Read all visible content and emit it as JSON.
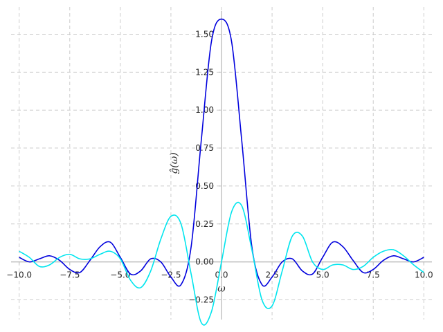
{
  "chart_data": {
    "type": "line",
    "title": "",
    "xlabel": "ω",
    "ylabel": "ĝ(ω)",
    "xlim": [
      -10.4,
      10.4
    ],
    "ylim": [
      -0.38,
      1.68
    ],
    "grid": true,
    "x_ticks": [
      -10.0,
      -7.5,
      -5.0,
      -2.5,
      0.0,
      2.5,
      5.0,
      7.5,
      10.0
    ],
    "x_tick_labels": [
      "−10.0",
      "−7.5",
      "−5.0",
      "−2.5",
      "0.0",
      "2.5",
      "5.0",
      "7.5",
      "10.0"
    ],
    "y_ticks": [
      -0.25,
      0.0,
      0.25,
      0.5,
      0.75,
      1.0,
      1.25,
      1.5
    ],
    "y_tick_labels": [
      "−0.25",
      "0.00",
      "0.25",
      "0.50",
      "0.75",
      "1.00",
      "1.25",
      "1.50"
    ],
    "series": [
      {
        "color": "#0000dd",
        "x": [
          -10.0,
          -9.5,
          -9.0,
          -8.5,
          -8.0,
          -7.5,
          -7.0,
          -6.5,
          -6.0,
          -5.5,
          -5.0,
          -4.5,
          -4.0,
          -3.5,
          -3.0,
          -2.5,
          -2.0,
          -1.5,
          -1.0,
          -0.5,
          0.0,
          0.5,
          1.0,
          1.5,
          2.0,
          2.5,
          3.0,
          3.5,
          4.0,
          4.5,
          5.0,
          5.5,
          6.0,
          6.5,
          7.0,
          7.5,
          8.0,
          8.5,
          9.0,
          9.5,
          10.0
        ],
        "y": [
          0.03,
          0.0,
          0.02,
          0.04,
          0.01,
          -0.05,
          -0.07,
          0.01,
          0.1,
          0.13,
          0.03,
          -0.08,
          -0.06,
          0.02,
          0.0,
          -0.1,
          -0.15,
          0.1,
          0.8,
          1.45,
          1.6,
          1.45,
          0.8,
          0.1,
          -0.15,
          -0.1,
          0.0,
          0.02,
          -0.06,
          -0.08,
          0.03,
          0.13,
          0.1,
          0.01,
          -0.07,
          -0.05,
          0.01,
          0.04,
          0.02,
          0.0,
          0.03
        ]
      },
      {
        "color": "#00e5ee",
        "x": [
          -10.0,
          -9.5,
          -9.0,
          -8.5,
          -8.0,
          -7.5,
          -7.0,
          -6.5,
          -6.0,
          -5.5,
          -5.0,
          -4.5,
          -4.0,
          -3.5,
          -3.0,
          -2.5,
          -2.0,
          -1.5,
          -1.0,
          -0.5,
          0.0,
          0.5,
          1.0,
          1.5,
          2.0,
          2.5,
          3.0,
          3.5,
          4.0,
          4.5,
          5.0,
          5.5,
          6.0,
          6.5,
          7.0,
          7.5,
          8.0,
          8.5,
          9.0,
          9.5,
          10.0
        ],
        "y": [
          0.07,
          0.03,
          -0.03,
          -0.02,
          0.03,
          0.05,
          0.02,
          0.02,
          0.05,
          0.07,
          0.02,
          -0.12,
          -0.17,
          -0.06,
          0.15,
          0.3,
          0.25,
          -0.08,
          -0.4,
          -0.33,
          0.0,
          0.33,
          0.37,
          0.08,
          -0.25,
          -0.29,
          -0.06,
          0.17,
          0.17,
          0.0,
          -0.05,
          -0.02,
          -0.02,
          -0.05,
          -0.03,
          0.03,
          0.07,
          0.08,
          0.04,
          -0.02,
          -0.07
        ]
      }
    ]
  }
}
